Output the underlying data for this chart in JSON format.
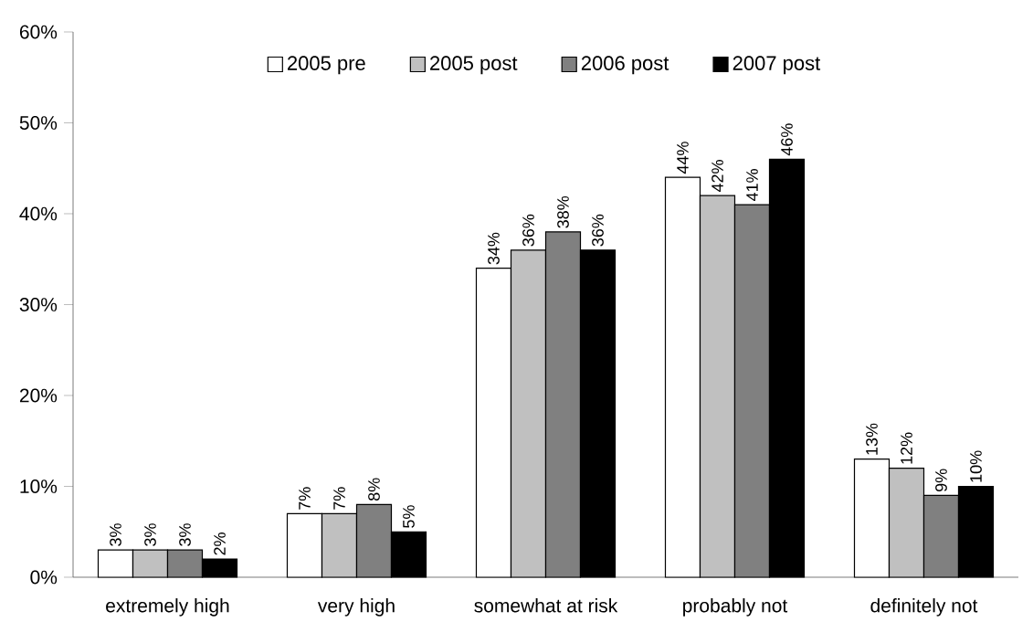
{
  "chart_data": {
    "type": "bar",
    "categories": [
      "extremely high",
      "very high",
      "somewhat at risk",
      "probably not",
      "definitely not"
    ],
    "series": [
      {
        "name": "2005 pre",
        "color": "#ffffff",
        "values": [
          3,
          7,
          34,
          44,
          13
        ],
        "value_labels": [
          "3%",
          "7%",
          "34%",
          "44%",
          "13%"
        ]
      },
      {
        "name": "2005 post",
        "color": "#c0c0c0",
        "values": [
          3,
          7,
          36,
          42,
          12
        ],
        "value_labels": [
          "3%",
          "7%",
          "36%",
          "42%",
          "12%"
        ]
      },
      {
        "name": "2006 post",
        "color": "#808080",
        "values": [
          3,
          8,
          38,
          41,
          9
        ],
        "value_labels": [
          "3%",
          "8%",
          "38%",
          "41%",
          "9%"
        ]
      },
      {
        "name": "2007 post",
        "color": "#000000",
        "values": [
          2,
          5,
          36,
          46,
          10
        ],
        "value_labels": [
          "2%",
          "5%",
          "36%",
          "46%",
          "10%"
        ]
      }
    ],
    "ylim": [
      0,
      60
    ],
    "yticks": [
      {
        "value": 0,
        "label": "0%"
      },
      {
        "value": 10,
        "label": "10%"
      },
      {
        "value": 20,
        "label": "20%"
      },
      {
        "value": 30,
        "label": "30%"
      },
      {
        "value": 40,
        "label": "40%"
      },
      {
        "value": 50,
        "label": "50%"
      },
      {
        "value": 60,
        "label": "60%"
      }
    ],
    "grid": false,
    "legend": "top"
  }
}
